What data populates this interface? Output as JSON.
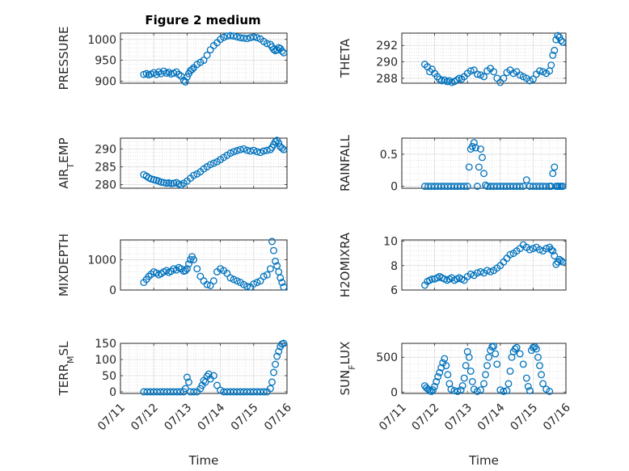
{
  "figure_title": "Figure 2 medium",
  "colors": {
    "series": "#0072BD",
    "axis": "#262626"
  },
  "chart_data": [
    {
      "type": "scatter",
      "ylabel": "PRESSURE",
      "ylabel_sub": null,
      "ylim": [
        895,
        1015
      ],
      "yticks": [
        900,
        950,
        1000
      ],
      "xticks": [
        "07/11",
        "07/12",
        "07/13",
        "07/14",
        "07/15",
        "07/16"
      ],
      "xlim": [
        0,
        5
      ],
      "xlabel": "",
      "x": [
        0.7,
        0.78,
        0.85,
        0.92,
        1.0,
        1.08,
        1.15,
        1.22,
        1.3,
        1.38,
        1.45,
        1.52,
        1.6,
        1.68,
        1.75,
        1.82,
        1.9,
        1.95,
        2.0,
        2.05,
        2.1,
        2.15,
        2.2,
        2.3,
        2.4,
        2.5,
        2.6,
        2.7,
        2.8,
        2.9,
        3.0,
        3.1,
        3.2,
        3.3,
        3.4,
        3.5,
        3.6,
        3.7,
        3.8,
        3.9,
        4.0,
        4.1,
        4.2,
        4.3,
        4.4,
        4.5,
        4.55,
        4.6,
        4.65,
        4.7,
        4.75,
        4.8,
        4.85,
        4.9
      ],
      "y": [
        916,
        918,
        915,
        917,
        920,
        916,
        922,
        918,
        924,
        919,
        921,
        917,
        919,
        922,
        916,
        912,
        902,
        898,
        910,
        918,
        925,
        928,
        932,
        940,
        945,
        950,
        962,
        975,
        985,
        992,
        1000,
        1005,
        1008,
        1009,
        1008,
        1006,
        1004,
        1003,
        1002,
        1004,
        1006,
        1004,
        1001,
        995,
        990,
        988,
        982,
        976,
        973,
        975,
        980,
        978,
        972,
        968
      ]
    },
    {
      "type": "scatter",
      "ylabel": "THETA",
      "ylabel_sub": null,
      "ylim": [
        287.4,
        293.5
      ],
      "yticks": [
        288,
        290,
        292
      ],
      "xticks": [
        "07/11",
        "07/12",
        "07/13",
        "07/14",
        "07/15",
        "07/16"
      ],
      "xlim": [
        0,
        5
      ],
      "xlabel": "",
      "x": [
        0.7,
        0.78,
        0.85,
        0.92,
        1.0,
        1.08,
        1.15,
        1.22,
        1.3,
        1.38,
        1.45,
        1.52,
        1.6,
        1.68,
        1.75,
        1.82,
        1.9,
        2.0,
        2.1,
        2.2,
        2.3,
        2.4,
        2.5,
        2.6,
        2.7,
        2.8,
        2.9,
        3.0,
        3.1,
        3.2,
        3.3,
        3.4,
        3.5,
        3.6,
        3.7,
        3.8,
        3.9,
        4.0,
        4.1,
        4.2,
        4.3,
        4.4,
        4.5,
        4.55,
        4.6,
        4.65,
        4.7,
        4.75,
        4.8,
        4.85,
        4.9
      ],
      "y": [
        289.7,
        289.4,
        288.8,
        289.1,
        288.6,
        288.2,
        287.9,
        287.7,
        287.8,
        287.6,
        287.7,
        287.5,
        287.6,
        287.8,
        288.0,
        287.9,
        288.2,
        288.6,
        288.9,
        289.0,
        288.5,
        288.4,
        288.2,
        288.9,
        289.2,
        288.8,
        288.0,
        287.5,
        288.0,
        288.7,
        289.0,
        288.6,
        288.8,
        288.4,
        288.2,
        288.0,
        287.7,
        287.9,
        288.5,
        288.9,
        288.8,
        288.6,
        288.9,
        289.6,
        290.8,
        291.4,
        292.7,
        293.2,
        293.0,
        292.6,
        292.4
      ]
    },
    {
      "type": "scatter",
      "ylabel": "AIR",
      "ylabel_sub": "T",
      "ylabel_tail": "EMP",
      "ylim": [
        279,
        293
      ],
      "yticks": [
        280,
        285,
        290
      ],
      "xticks": [
        "07/11",
        "07/12",
        "07/13",
        "07/14",
        "07/15",
        "07/16"
      ],
      "xlim": [
        0,
        5
      ],
      "xlabel": "",
      "x": [
        0.7,
        0.78,
        0.85,
        0.92,
        1.0,
        1.08,
        1.15,
        1.22,
        1.3,
        1.38,
        1.45,
        1.52,
        1.6,
        1.68,
        1.75,
        1.82,
        1.9,
        2.0,
        2.1,
        2.2,
        2.3,
        2.4,
        2.5,
        2.6,
        2.7,
        2.8,
        2.9,
        3.0,
        3.1,
        3.2,
        3.3,
        3.4,
        3.5,
        3.6,
        3.7,
        3.8,
        3.9,
        4.0,
        4.1,
        4.2,
        4.3,
        4.4,
        4.5,
        4.55,
        4.6,
        4.65,
        4.7,
        4.75,
        4.8,
        4.85,
        4.9
      ],
      "y": [
        282.8,
        282.4,
        281.9,
        281.6,
        281.4,
        281.2,
        281.0,
        280.7,
        280.6,
        280.4,
        280.5,
        280.3,
        280.4,
        280.6,
        280.2,
        279.9,
        280.4,
        281.0,
        281.8,
        282.6,
        283.0,
        283.6,
        284.4,
        285.0,
        285.6,
        286.0,
        286.4,
        287.0,
        287.6,
        288.2,
        288.8,
        289.2,
        289.5,
        289.8,
        290.0,
        289.6,
        289.4,
        289.6,
        289.2,
        289.0,
        289.4,
        289.6,
        289.8,
        290.4,
        291.2,
        292.0,
        292.4,
        291.6,
        290.6,
        290.2,
        289.8
      ]
    },
    {
      "type": "scatter",
      "ylabel": "RAINFALL",
      "ylabel_sub": null,
      "ylim": [
        -0.03,
        0.75
      ],
      "yticks": [
        0,
        0.5
      ],
      "xticks": [
        "07/11",
        "07/12",
        "07/13",
        "07/14",
        "07/15",
        "07/16"
      ],
      "xlim": [
        0,
        5
      ],
      "xlabel": "",
      "x": [
        0.7,
        0.8,
        0.9,
        1.0,
        1.1,
        1.2,
        1.3,
        1.4,
        1.5,
        1.6,
        1.7,
        1.8,
        1.9,
        2.0,
        2.05,
        2.1,
        2.15,
        2.2,
        2.25,
        2.3,
        2.35,
        2.4,
        2.45,
        2.5,
        2.55,
        2.6,
        2.7,
        2.8,
        2.9,
        3.0,
        3.1,
        3.2,
        3.3,
        3.4,
        3.5,
        3.6,
        3.7,
        3.8,
        3.9,
        4.0,
        4.1,
        4.2,
        4.3,
        4.4,
        4.5,
        4.55,
        4.6,
        4.65,
        4.7,
        4.75,
        4.8,
        4.85,
        4.9
      ],
      "y": [
        0,
        0,
        0,
        0,
        0,
        0,
        0,
        0,
        0,
        0,
        0,
        0,
        0,
        0,
        0.3,
        0.58,
        0.62,
        0.68,
        0.6,
        0.0,
        0.3,
        0.58,
        0.45,
        0.2,
        0.02,
        0.0,
        0,
        0,
        0,
        0,
        0,
        0,
        0,
        0,
        0,
        0,
        0,
        0.1,
        0,
        0,
        0,
        0,
        0,
        0,
        0,
        0,
        0.2,
        0.3,
        0,
        0,
        0,
        0,
        0
      ]
    },
    {
      "type": "scatter",
      "ylabel": "MIXDEPTH",
      "ylabel_sub": null,
      "ylim": [
        0,
        1650
      ],
      "yticks": [
        0,
        1000
      ],
      "xticks": [
        "07/11",
        "07/12",
        "07/13",
        "07/14",
        "07/15",
        "07/16"
      ],
      "xlim": [
        0,
        5
      ],
      "xlabel": "",
      "x": [
        0.7,
        0.78,
        0.85,
        0.92,
        1.0,
        1.08,
        1.15,
        1.22,
        1.3,
        1.38,
        1.45,
        1.52,
        1.6,
        1.68,
        1.75,
        1.82,
        1.9,
        1.95,
        2.0,
        2.05,
        2.1,
        2.15,
        2.2,
        2.3,
        2.4,
        2.5,
        2.6,
        2.7,
        2.8,
        2.9,
        3.0,
        3.1,
        3.2,
        3.3,
        3.4,
        3.5,
        3.6,
        3.7,
        3.8,
        3.9,
        4.0,
        4.1,
        4.2,
        4.3,
        4.4,
        4.5,
        4.55,
        4.6,
        4.65,
        4.7,
        4.75,
        4.8,
        4.85,
        4.9
      ],
      "y": [
        250,
        350,
        450,
        520,
        600,
        560,
        500,
        540,
        600,
        640,
        580,
        620,
        700,
        660,
        740,
        700,
        620,
        640,
        700,
        860,
        1000,
        1100,
        1000,
        700,
        450,
        300,
        180,
        150,
        300,
        600,
        700,
        640,
        550,
        400,
        350,
        300,
        250,
        180,
        120,
        100,
        200,
        250,
        300,
        450,
        500,
        700,
        1600,
        1300,
        950,
        800,
        600,
        400,
        250,
        100
      ]
    },
    {
      "type": "scatter",
      "ylabel": "H2OMIXRA",
      "ylabel_sub": null,
      "ylim": [
        6,
        10.1
      ],
      "yticks": [
        6,
        8,
        10
      ],
      "xticks": [
        "07/11",
        "07/12",
        "07/13",
        "07/14",
        "07/15",
        "07/16"
      ],
      "xlim": [
        0,
        5
      ],
      "xlabel": "",
      "x": [
        0.7,
        0.78,
        0.85,
        0.92,
        1.0,
        1.08,
        1.15,
        1.22,
        1.3,
        1.38,
        1.45,
        1.52,
        1.6,
        1.68,
        1.75,
        1.82,
        1.9,
        2.0,
        2.1,
        2.2,
        2.3,
        2.4,
        2.5,
        2.6,
        2.7,
        2.8,
        2.9,
        3.0,
        3.1,
        3.2,
        3.3,
        3.4,
        3.5,
        3.6,
        3.7,
        3.8,
        3.9,
        4.0,
        4.1,
        4.2,
        4.3,
        4.4,
        4.5,
        4.55,
        4.6,
        4.65,
        4.7,
        4.75,
        4.8,
        4.85,
        4.9
      ],
      "y": [
        6.4,
        6.7,
        6.8,
        6.9,
        6.9,
        7.0,
        7.1,
        7.0,
        6.9,
        6.8,
        6.9,
        7.0,
        6.8,
        6.9,
        7.0,
        6.9,
        6.8,
        7.1,
        7.3,
        7.2,
        7.4,
        7.5,
        7.4,
        7.6,
        7.5,
        7.6,
        7.8,
        8.0,
        8.3,
        8.6,
        8.9,
        9.0,
        9.2,
        9.4,
        9.7,
        9.5,
        9.3,
        9.4,
        9.5,
        9.3,
        9.2,
        9.4,
        9.5,
        9.3,
        9.2,
        8.8,
        8.1,
        8.3,
        8.5,
        8.4,
        8.3
      ]
    },
    {
      "type": "scatter",
      "ylabel": "TERR",
      "ylabel_sub": "M",
      "ylabel_tail": "SL",
      "ylim": [
        -5,
        150
      ],
      "yticks": [
        0,
        50,
        100,
        150
      ],
      "xticks": [
        "07/11",
        "07/12",
        "07/13",
        "07/14",
        "07/15",
        "07/16"
      ],
      "xlim": [
        0,
        5
      ],
      "xlabel": "Time",
      "x": [
        0.7,
        0.8,
        0.9,
        1.0,
        1.1,
        1.2,
        1.3,
        1.4,
        1.5,
        1.6,
        1.7,
        1.8,
        1.9,
        1.95,
        2.0,
        2.05,
        2.1,
        2.2,
        2.3,
        2.4,
        2.45,
        2.5,
        2.55,
        2.6,
        2.65,
        2.7,
        2.8,
        2.9,
        3.0,
        3.1,
        3.2,
        3.3,
        3.4,
        3.5,
        3.6,
        3.7,
        3.8,
        3.9,
        4.0,
        4.1,
        4.2,
        4.3,
        4.4,
        4.5,
        4.55,
        4.6,
        4.65,
        4.7,
        4.75,
        4.8,
        4.85,
        4.9
      ],
      "y": [
        0,
        0,
        0,
        0,
        0,
        0,
        0,
        0,
        0,
        0,
        0,
        0,
        0,
        10,
        45,
        30,
        0,
        0,
        0,
        10,
        20,
        35,
        30,
        48,
        55,
        40,
        50,
        20,
        5,
        0,
        0,
        0,
        0,
        0,
        0,
        0,
        0,
        0,
        0,
        0,
        0,
        0,
        0,
        10,
        30,
        60,
        85,
        110,
        125,
        140,
        148,
        150
      ]
    },
    {
      "type": "scatter",
      "ylabel": "SUN",
      "ylabel_sub": "F",
      "ylabel_tail": "LUX",
      "ylim": [
        -20,
        700
      ],
      "yticks": [
        0,
        500
      ],
      "xticks": [
        "07/11",
        "07/12",
        "07/13",
        "07/14",
        "07/15",
        "07/16"
      ],
      "xlim": [
        0,
        5
      ],
      "xlabel": "Time",
      "x": [
        0.7,
        0.75,
        0.8,
        0.85,
        0.9,
        0.95,
        1.0,
        1.05,
        1.1,
        1.15,
        1.2,
        1.25,
        1.3,
        1.35,
        1.4,
        1.45,
        1.5,
        1.6,
        1.7,
        1.8,
        1.85,
        1.9,
        1.95,
        2.0,
        2.05,
        2.1,
        2.15,
        2.2,
        2.3,
        2.4,
        2.5,
        2.55,
        2.6,
        2.65,
        2.7,
        2.75,
        2.8,
        2.85,
        2.9,
        3.0,
        3.1,
        3.2,
        3.25,
        3.3,
        3.35,
        3.4,
        3.45,
        3.5,
        3.6,
        3.7,
        3.8,
        3.85,
        3.9,
        3.95,
        4.0,
        4.05,
        4.1,
        4.15,
        4.2,
        4.25,
        4.3,
        4.4,
        4.5
      ],
      "y": [
        90,
        60,
        40,
        20,
        10,
        30,
        80,
        150,
        220,
        280,
        350,
        420,
        480,
        380,
        250,
        120,
        40,
        20,
        10,
        30,
        90,
        200,
        380,
        580,
        500,
        300,
        150,
        40,
        10,
        30,
        120,
        250,
        380,
        500,
        600,
        650,
        660,
        550,
        400,
        30,
        10,
        20,
        120,
        300,
        500,
        580,
        620,
        640,
        550,
        400,
        200,
        80,
        20,
        600,
        640,
        650,
        620,
        500,
        380,
        250,
        120,
        40,
        10
      ]
    }
  ]
}
